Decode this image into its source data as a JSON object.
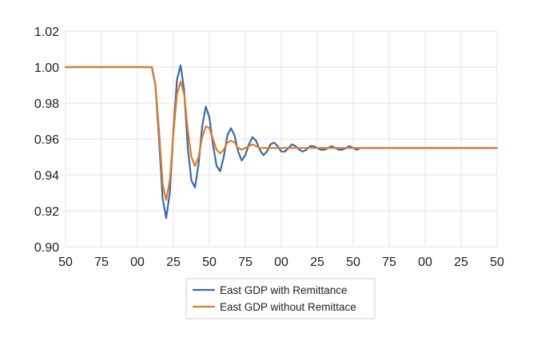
{
  "chart_data": {
    "type": "line",
    "title": "",
    "xlabel": "",
    "ylabel": "",
    "ylim": [
      0.9,
      1.02
    ],
    "yticks": [
      0.9,
      0.92,
      0.94,
      0.96,
      0.98,
      1.0,
      1.02
    ],
    "ytick_labels": [
      "0.90",
      "0.92",
      "0.94",
      "0.96",
      "0.98",
      "1.00",
      "1.02"
    ],
    "xlim": [
      0,
      12
    ],
    "xticks": [
      0,
      1,
      2,
      3,
      4,
      5,
      6,
      7,
      8,
      9,
      10,
      11,
      12
    ],
    "xtick_labels": [
      "50",
      "75",
      "00",
      "25",
      "50",
      "75",
      "00",
      "25",
      "50",
      "75",
      "00",
      "25",
      "50"
    ],
    "grid": "on",
    "legend_position": "bottom",
    "series": [
      {
        "name": "East GDP with Remittance",
        "color": "#3a6aaa",
        "x": [
          0,
          2.4,
          2.5,
          2.6,
          2.7,
          2.8,
          2.9,
          3.0,
          3.1,
          3.2,
          3.3,
          3.4,
          3.5,
          3.6,
          3.7,
          3.8,
          3.9,
          4.0,
          4.1,
          4.2,
          4.3,
          4.4,
          4.5,
          4.6,
          4.7,
          4.8,
          4.9,
          5.0,
          5.1,
          5.2,
          5.3,
          5.4,
          5.5,
          5.6,
          5.7,
          5.8,
          5.9,
          6.0,
          6.1,
          6.2,
          6.3,
          6.4,
          6.5,
          6.6,
          6.7,
          6.8,
          6.9,
          7.0,
          7.1,
          7.2,
          7.3,
          7.4,
          7.5,
          7.6,
          7.7,
          7.8,
          7.9,
          8.0,
          8.1,
          8.2,
          8.3,
          8.4,
          8.5,
          8.6,
          8.7,
          8.8,
          8.9,
          9.0,
          9.1,
          9.2,
          9.3,
          9.4,
          9.5,
          9.6,
          9.7,
          9.8,
          9.9,
          10.0,
          10.2,
          10.4,
          10.6,
          10.8,
          11.0,
          11.5,
          12.0
        ],
        "values": [
          1.0,
          1.0,
          0.99,
          0.96,
          0.927,
          0.916,
          0.93,
          0.965,
          0.993,
          1.001,
          0.987,
          0.955,
          0.937,
          0.933,
          0.946,
          0.967,
          0.978,
          0.972,
          0.957,
          0.945,
          0.942,
          0.95,
          0.962,
          0.966,
          0.962,
          0.953,
          0.948,
          0.951,
          0.957,
          0.961,
          0.959,
          0.954,
          0.951,
          0.953,
          0.957,
          0.958,
          0.956,
          0.953,
          0.953,
          0.955,
          0.957,
          0.956,
          0.954,
          0.953,
          0.954,
          0.956,
          0.956,
          0.955,
          0.954,
          0.954,
          0.955,
          0.956,
          0.955,
          0.954,
          0.954,
          0.955,
          0.956,
          0.955,
          0.954,
          0.955,
          0.955,
          0.955,
          0.955,
          0.955,
          0.955,
          0.955,
          0.955,
          0.955,
          0.955,
          0.955,
          0.955,
          0.955,
          0.955,
          0.955,
          0.955,
          0.955,
          0.955,
          0.955,
          0.955,
          0.955,
          0.955,
          0.955,
          0.955,
          0.955,
          0.955
        ]
      },
      {
        "name": "East GDP without Remittace",
        "color": "#e07b24",
        "x": [
          0,
          2.4,
          2.5,
          2.6,
          2.7,
          2.8,
          2.9,
          3.0,
          3.1,
          3.2,
          3.3,
          3.4,
          3.5,
          3.6,
          3.7,
          3.8,
          3.9,
          4.0,
          4.1,
          4.2,
          4.3,
          4.4,
          4.5,
          4.6,
          4.7,
          4.8,
          4.9,
          5.0,
          5.1,
          5.2,
          5.3,
          5.4,
          5.5,
          5.6,
          5.7,
          5.8,
          5.9,
          6.0,
          6.2,
          6.4,
          6.6,
          6.8,
          7.0,
          7.5,
          8.0,
          9.0,
          10.0,
          11.0,
          12.0
        ],
        "values": [
          1.0,
          1.0,
          0.99,
          0.965,
          0.935,
          0.926,
          0.937,
          0.963,
          0.985,
          0.992,
          0.985,
          0.965,
          0.95,
          0.945,
          0.95,
          0.961,
          0.967,
          0.966,
          0.96,
          0.954,
          0.952,
          0.954,
          0.958,
          0.959,
          0.958,
          0.955,
          0.954,
          0.955,
          0.956,
          0.957,
          0.956,
          0.955,
          0.955,
          0.955,
          0.955,
          0.955,
          0.955,
          0.955,
          0.955,
          0.955,
          0.955,
          0.955,
          0.955,
          0.955,
          0.955,
          0.955,
          0.955,
          0.955,
          0.955
        ]
      }
    ]
  }
}
